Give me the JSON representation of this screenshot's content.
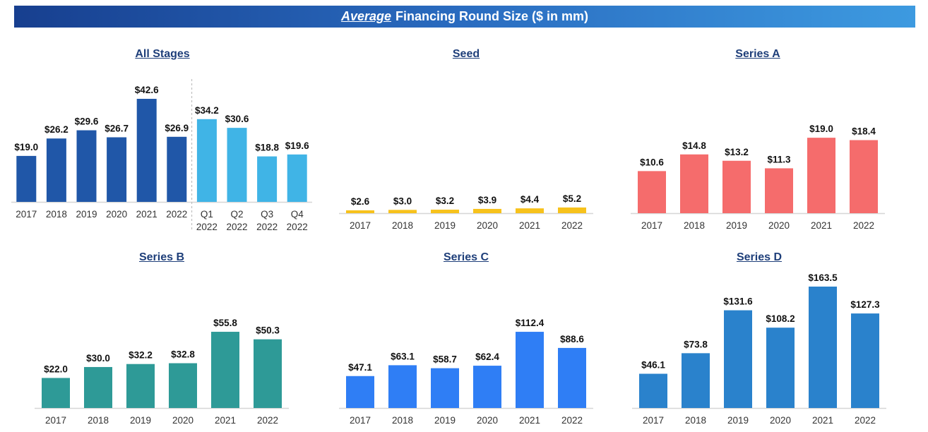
{
  "header": {
    "title_emphasis": "Average",
    "title_rest": "Financing Round Size ($ in mm)"
  },
  "chart_data": [
    {
      "type": "bar",
      "title": "All Stages",
      "categories": [
        "2017",
        "2018",
        "2019",
        "2020",
        "2021",
        "2022",
        "Q1 2022",
        "Q2 2022",
        "Q3 2022",
        "Q4 2022"
      ],
      "values": [
        19.0,
        26.2,
        29.6,
        26.7,
        42.6,
        26.9,
        34.2,
        30.6,
        18.8,
        19.6
      ],
      "value_labels": [
        "$19.0",
        "$26.2",
        "$29.6",
        "$26.7",
        "$42.6",
        "$26.9",
        "$34.2",
        "$30.6",
        "$18.8",
        "$19.6"
      ],
      "colors": [
        "#2057a8",
        "#2057a8",
        "#2057a8",
        "#2057a8",
        "#2057a8",
        "#2057a8",
        "#40b4e6",
        "#40b4e6",
        "#40b4e6",
        "#40b4e6"
      ],
      "separator_after_index": 5,
      "ylim": [
        0,
        42.6
      ],
      "grid": false
    },
    {
      "type": "bar",
      "title": "Seed",
      "categories": [
        "2017",
        "2018",
        "2019",
        "2020",
        "2021",
        "2022"
      ],
      "values": [
        2.6,
        3.0,
        3.2,
        3.9,
        4.4,
        5.2
      ],
      "value_labels": [
        "$2.6",
        "$3.0",
        "$3.2",
        "$3.9",
        "$4.4",
        "$5.2"
      ],
      "color": "#f7c21c",
      "ylim": [
        0,
        104.3
      ],
      "grid": false
    },
    {
      "type": "bar",
      "title": "Series A",
      "categories": [
        "2017",
        "2018",
        "2019",
        "2020",
        "2021",
        "2022"
      ],
      "values": [
        10.6,
        14.8,
        13.2,
        11.3,
        19.0,
        18.4
      ],
      "value_labels": [
        "$10.6",
        "$14.8",
        "$13.2",
        "$11.3",
        "$19.0",
        "$18.4"
      ],
      "color": "#f56c6c",
      "ylim": [
        0,
        28.8
      ],
      "grid": false
    },
    {
      "type": "bar",
      "title": "Series B",
      "categories": [
        "2017",
        "2018",
        "2019",
        "2020",
        "2021",
        "2022"
      ],
      "values": [
        22.0,
        30.0,
        32.2,
        32.8,
        55.8,
        50.3
      ],
      "value_labels": [
        "$22.0",
        "$30.0",
        "$32.2",
        "$32.8",
        "$55.8",
        "$50.3"
      ],
      "color": "#2e9a97",
      "ylim": [
        0,
        82.7
      ],
      "grid": false
    },
    {
      "type": "bar",
      "title": "Series C",
      "categories": [
        "2017",
        "2018",
        "2019",
        "2020",
        "2021",
        "2022"
      ],
      "values": [
        47.1,
        63.1,
        58.7,
        62.4,
        112.4,
        88.6
      ],
      "value_labels": [
        "$47.1",
        "$63.1",
        "$58.7",
        "$62.4",
        "$112.4",
        "$88.6"
      ],
      "color": "#2f7ef5",
      "ylim": [
        0,
        166.6
      ],
      "grid": false
    },
    {
      "type": "bar",
      "title": "Series D",
      "categories": [
        "2017",
        "2018",
        "2019",
        "2020",
        "2021",
        "2022"
      ],
      "values": [
        46.1,
        73.8,
        131.6,
        108.2,
        163.5,
        127.3
      ],
      "value_labels": [
        "$46.1",
        "$73.8",
        "$131.6",
        "$108.2",
        "$163.5",
        "$127.3"
      ],
      "color": "#2a82cc",
      "ylim": [
        0,
        163.5
      ],
      "grid": false
    }
  ]
}
